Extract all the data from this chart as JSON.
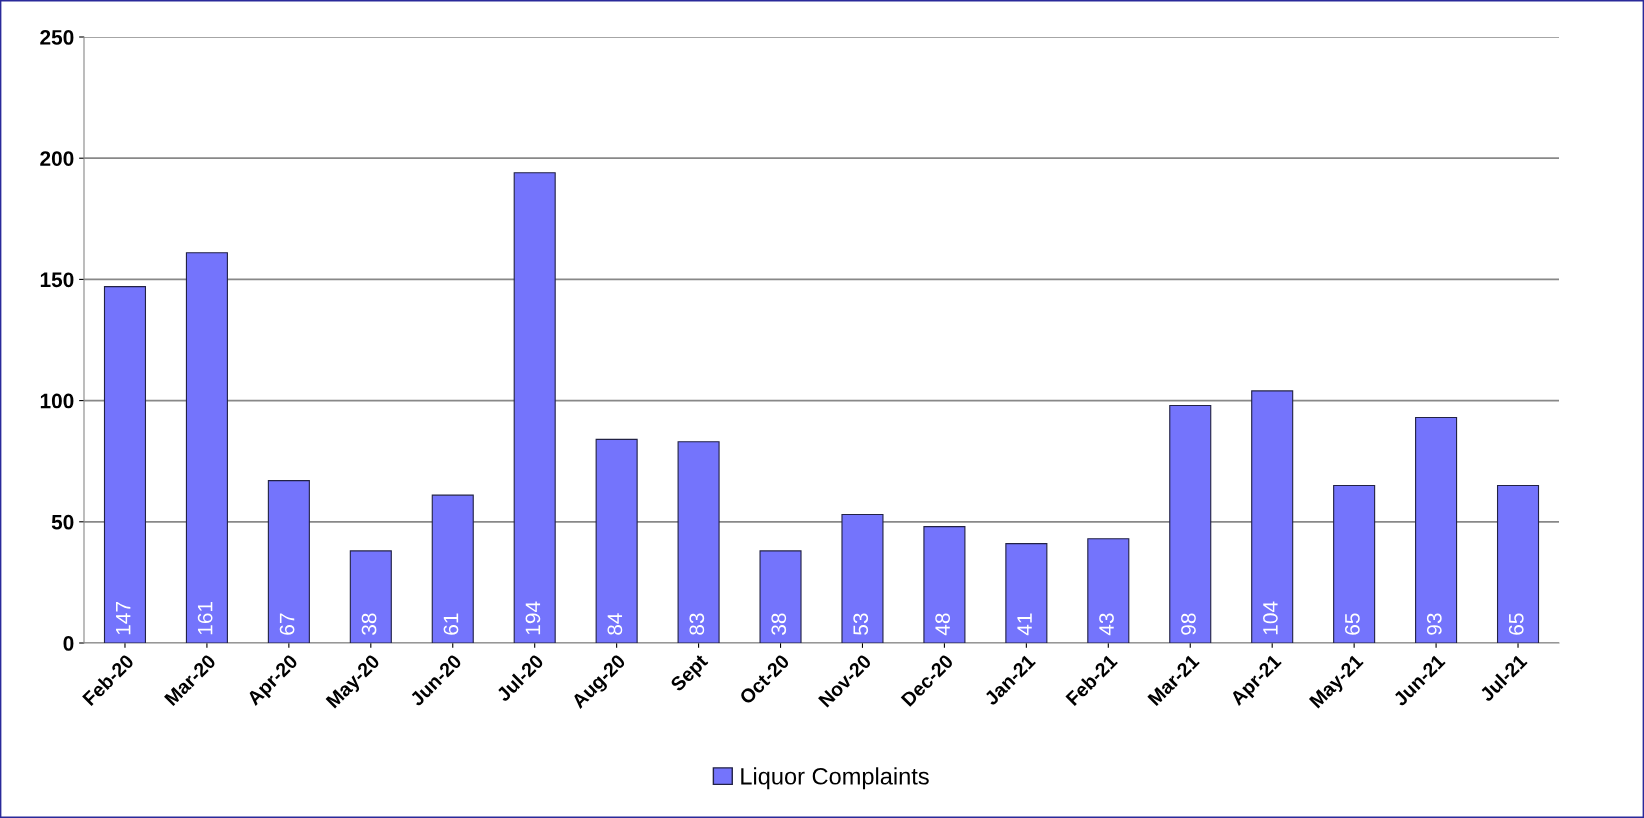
{
  "chart_data": {
    "type": "bar",
    "categories": [
      "Feb-20",
      "Mar-20",
      "Apr-20",
      "May-20",
      "Jun-20",
      "Jul-20",
      "Aug-20",
      "Sept",
      "Oct-20",
      "Nov-20",
      "Dec-20",
      "Jan-21",
      "Feb-21",
      "Mar-21",
      "Apr-21",
      "May-21",
      "Jun-21",
      "Jul-21"
    ],
    "series": [
      {
        "name": "Liquor Complaints",
        "color": "#7474fc",
        "values": [
          147,
          161,
          67,
          38,
          61,
          194,
          84,
          83,
          38,
          53,
          48,
          41,
          43,
          98,
          104,
          65,
          93,
          65
        ]
      }
    ],
    "ylim": [
      0,
      250
    ],
    "yticks": [
      0,
      50,
      100,
      150,
      200,
      250
    ],
    "grid": "y",
    "legend": "bottom",
    "data_labels": true
  }
}
